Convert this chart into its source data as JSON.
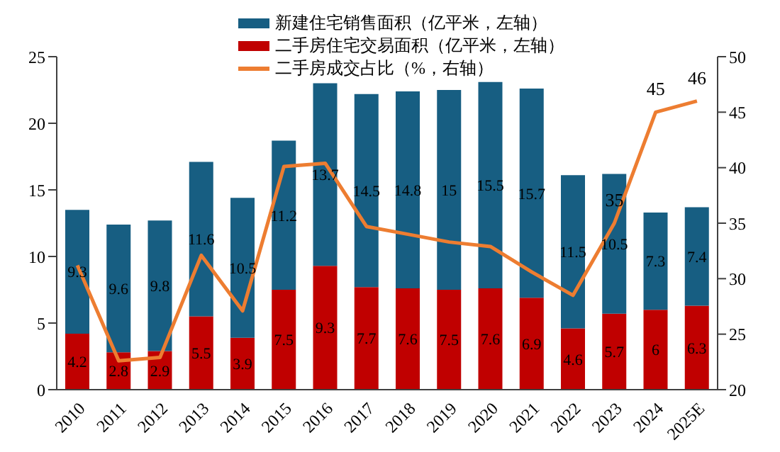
{
  "chart_data": {
    "type": "bar",
    "stacked": true,
    "legend": "top",
    "grid": false,
    "categories": [
      "2010",
      "2011",
      "2012",
      "2013",
      "2014",
      "2015",
      "2016",
      "2017",
      "2018",
      "2019",
      "2020",
      "2021",
      "2022",
      "2023",
      "2024",
      "2025E"
    ],
    "series": [
      {
        "name": "二手房住宅交易面积（亿平米，左轴）",
        "color": "#c00000",
        "values": [
          4.2,
          2.8,
          2.9,
          5.5,
          3.9,
          7.5,
          9.3,
          7.7,
          7.6,
          7.5,
          7.6,
          6.9,
          4.6,
          5.7,
          6,
          6.3
        ],
        "value_labels": [
          "4.2",
          "2.8",
          "2.9",
          "5.5",
          "3.9",
          "7.5",
          "9.3",
          "7.7",
          "7.6",
          "7.5",
          "7.6",
          "6.9",
          "4.6",
          "5.7",
          "6",
          "6.3"
        ]
      },
      {
        "name": "新建住宅销售面积（亿平米，左轴）",
        "color": "#175e82",
        "values": [
          9.3,
          9.6,
          9.8,
          11.6,
          10.5,
          11.2,
          13.7,
          14.5,
          14.8,
          15,
          15.5,
          15.7,
          11.5,
          10.5,
          7.3,
          7.4
        ],
        "value_labels": [
          "9.3",
          "9.6",
          "9.8",
          "11.6",
          "10.5",
          "11.2",
          "13.7",
          "14.5",
          "14.8",
          "15",
          "15.5",
          "15.7",
          "11.5",
          "10.5",
          "7.3",
          "7.4"
        ]
      },
      {
        "name": "二手房成交占比（%，右轴）",
        "type": "line",
        "axis": "y2",
        "color": "#ed7d31",
        "marker": "none",
        "values": [
          31.2,
          22.6,
          22.9,
          32.1,
          27.1,
          40.1,
          40.4,
          34.7,
          34.0,
          33.3,
          32.9,
          30.6,
          28.5,
          35,
          45,
          46
        ],
        "value_labels": [
          null,
          null,
          null,
          null,
          null,
          null,
          null,
          null,
          null,
          null,
          null,
          null,
          null,
          "35",
          "45",
          "46"
        ]
      }
    ],
    "ylim": [
      0,
      25
    ],
    "yticks": [
      0,
      5,
      10,
      15,
      20,
      25
    ],
    "y2lim": [
      20,
      50
    ],
    "y2ticks": [
      20,
      25,
      30,
      35,
      40,
      45,
      50
    ]
  }
}
